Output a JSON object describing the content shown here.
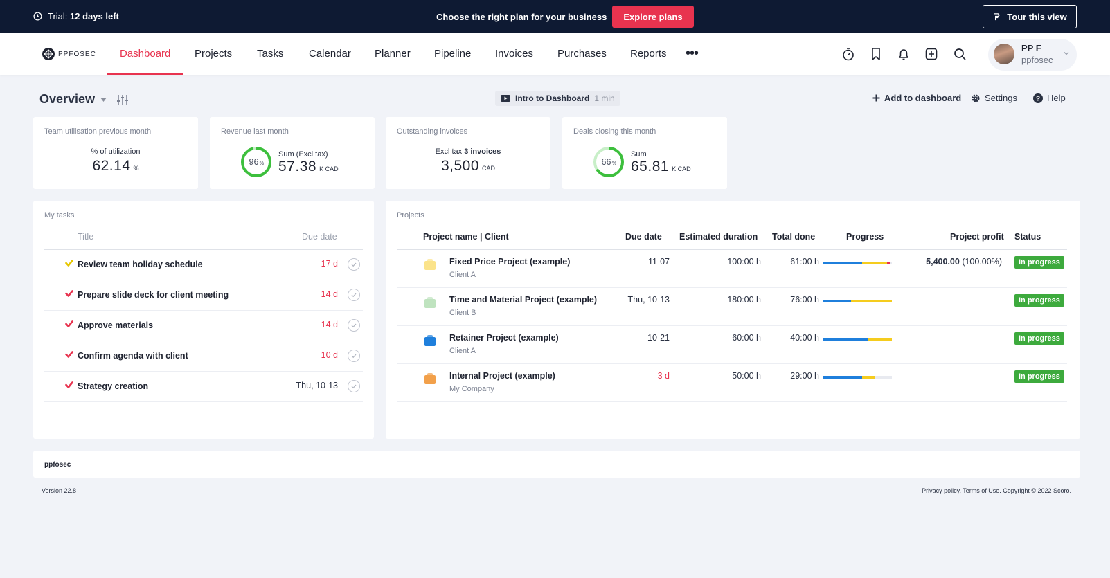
{
  "banner": {
    "trial_prefix": "Trial: ",
    "trial_days": "12 days left",
    "promo_text": "Choose the right plan for your business",
    "explore_label": "Explore plans",
    "tour_label": "Tour this view"
  },
  "nav": {
    "logo_text": "PPFOSEC",
    "items": [
      "Dashboard",
      "Projects",
      "Tasks",
      "Calendar",
      "Planner",
      "Pipeline",
      "Invoices",
      "Purchases",
      "Reports"
    ],
    "active": "Dashboard",
    "more": "•••",
    "user_name": "PP F",
    "user_company": "ppfosec"
  },
  "toolbar": {
    "overview_label": "Overview",
    "intro_label": "Intro to Dashboard",
    "intro_duration": "1 min",
    "add_label": "Add to dashboard",
    "settings_label": "Settings",
    "help_label": "Help"
  },
  "kpis": {
    "utilisation": {
      "title": "Team utilisation previous month",
      "label": "% of utilization",
      "value": "62.14",
      "unit": "%"
    },
    "revenue": {
      "title": "Revenue last month",
      "label": "Sum (Excl tax)",
      "value": "57.38",
      "unit": "K  CAD",
      "percent_text": "96",
      "percent_sign": "%",
      "percent_value": 96
    },
    "outstanding": {
      "title": "Outstanding invoices",
      "label_prefix": "Excl tax ",
      "label_count": "3 invoices",
      "value": "3,500",
      "unit": "CAD"
    },
    "deals": {
      "title": "Deals closing this month",
      "label": "Sum",
      "value": "65.81",
      "unit": "K  CAD",
      "percent_text": "66",
      "percent_sign": "%",
      "percent_value": 66
    }
  },
  "tasks": {
    "panel_title": "My tasks",
    "col_title": "Title",
    "col_due": "Due date",
    "rows": [
      {
        "title": "Review team holiday schedule",
        "due": "17 d",
        "overdue": true,
        "check_color": "#e6c700"
      },
      {
        "title": "Prepare slide deck for client meeting",
        "due": "14 d",
        "overdue": true,
        "check_color": "#e8334f"
      },
      {
        "title": "Approve materials",
        "due": "14 d",
        "overdue": true,
        "check_color": "#e8334f"
      },
      {
        "title": "Confirm agenda with client",
        "due": "10 d",
        "overdue": true,
        "check_color": "#e8334f"
      },
      {
        "title": "Strategy creation",
        "due": "Thu, 10-13",
        "overdue": false,
        "check_color": "#e8334f"
      }
    ]
  },
  "projects": {
    "panel_title": "Projects",
    "headers": {
      "name": "Project name | Client",
      "due": "Due date",
      "estimated": "Estimated duration",
      "done": "Total done",
      "progress": "Progress",
      "profit": "Project profit",
      "status": "Status"
    },
    "rows": [
      {
        "name": "Fixed Price Project (example)",
        "client": "Client A",
        "due": "11-07",
        "due_overdue": false,
        "estimated": "100:00 h",
        "done": "61:00 h",
        "profit_value": "5,400.00",
        "profit_pct": " (100.00%)",
        "status": "In progress",
        "icon_color": "#fbe38a",
        "progress": [
          0.57,
          0.36,
          0.05
        ]
      },
      {
        "name": "Time and Material Project (example)",
        "client": "Client B",
        "due": "Thu, 10-13",
        "due_overdue": false,
        "estimated": "180:00 h",
        "done": "76:00 h",
        "profit_value": "",
        "profit_pct": "",
        "status": "In progress",
        "icon_color": "#bfe3bf",
        "progress": [
          0.41,
          0.59,
          0
        ]
      },
      {
        "name": "Retainer Project (example)",
        "client": "Client A",
        "due": "10-21",
        "due_overdue": false,
        "estimated": "60:00 h",
        "done": "40:00 h",
        "profit_value": "",
        "profit_pct": "",
        "status": "In progress",
        "icon_color": "#1f7fdc",
        "progress": [
          0.66,
          0.34,
          0
        ]
      },
      {
        "name": "Internal Project (example)",
        "client": "My Company",
        "due": "3 d",
        "due_overdue": true,
        "estimated": "50:00 h",
        "done": "29:00 h",
        "profit_value": "",
        "profit_pct": "",
        "status": "In progress",
        "icon_color": "#f2a04a",
        "progress": [
          0.57,
          0.19,
          0
        ]
      }
    ]
  },
  "footer": {
    "company": "ppfosec",
    "version": "Version 22.8",
    "copyright": "Privacy policy. Terms of Use. Copyright © 2022 Scoro."
  },
  "colors": {
    "accent": "#e8334f",
    "banner_bg": "#0e1a33",
    "status_green": "#3daa3d",
    "progress_blue": "#1f7fdc",
    "progress_yellow": "#f5cc1e",
    "progress_red": "#e8334f",
    "donut_green": "#3dbf3d",
    "overdue_red": "#e8334f"
  }
}
